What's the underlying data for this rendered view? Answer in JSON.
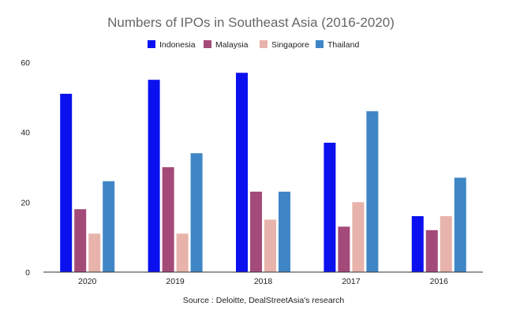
{
  "chart_data": {
    "type": "bar",
    "title": "Numbers of IPOs in Southeast Asia (2016-2020)",
    "source": "Source : Deloitte, DealStreetAsia's research",
    "categories": [
      "2020",
      "2019",
      "2018",
      "2017",
      "2016"
    ],
    "series": [
      {
        "name": "Indonesia",
        "color": "#0b11ee",
        "values": [
          51,
          55,
          57,
          37,
          16
        ]
      },
      {
        "name": "Malaysia",
        "color": "#a44a78",
        "values": [
          18,
          30,
          23,
          13,
          12
        ]
      },
      {
        "name": "Singapore",
        "color": "#e7b3ab",
        "values": [
          11,
          11,
          15,
          20,
          16
        ]
      },
      {
        "name": "Thailand",
        "color": "#3f86c6",
        "values": [
          26,
          34,
          23,
          46,
          27
        ]
      }
    ],
    "yticks": [
      "0",
      "20",
      "40",
      "60"
    ],
    "ylim": [
      0,
      60
    ],
    "grid": false,
    "legend_position": "top"
  }
}
